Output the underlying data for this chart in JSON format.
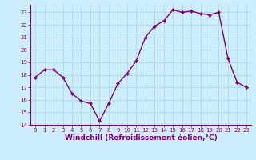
{
  "x": [
    0,
    1,
    2,
    3,
    4,
    5,
    6,
    7,
    8,
    9,
    10,
    11,
    12,
    13,
    14,
    15,
    16,
    17,
    18,
    19,
    20,
    21,
    22,
    23
  ],
  "y": [
    17.8,
    18.4,
    18.4,
    17.8,
    16.5,
    15.9,
    15.7,
    14.3,
    15.7,
    17.3,
    18.1,
    19.1,
    21.0,
    21.9,
    22.3,
    23.2,
    23.0,
    23.1,
    22.9,
    22.8,
    23.0,
    19.3,
    17.4,
    17.0
  ],
  "line_color": "#800080",
  "marker": "D",
  "marker_size": 2,
  "line_width": 1.0,
  "bg_color": "#cceeff",
  "grid_color": "#aadddd",
  "xlabel": "Windchill (Refroidissement éolien,°C)",
  "xlim": [
    -0.5,
    23.5
  ],
  "ylim": [
    14,
    23.6
  ],
  "yticks": [
    14,
    15,
    16,
    17,
    18,
    19,
    20,
    21,
    22,
    23
  ],
  "xticks": [
    0,
    1,
    2,
    3,
    4,
    5,
    6,
    7,
    8,
    9,
    10,
    11,
    12,
    13,
    14,
    15,
    16,
    17,
    18,
    19,
    20,
    21,
    22,
    23
  ],
  "tick_color": "#800080",
  "label_color": "#800080",
  "tick_fontsize": 5.0,
  "xlabel_fontsize": 6.5
}
